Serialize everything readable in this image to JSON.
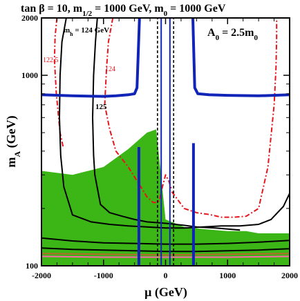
{
  "chart_data": {
    "type": "line",
    "title": "tan β = 10, m",
    "title_sub": "1/2",
    "title_mid": " = 1000 GeV, m",
    "title_sub2": "0",
    "title_end": " = 1000 GeV",
    "xlabel": "μ (GeV)",
    "ylabel": "m",
    "ylabel_sub": "A",
    "ylabel_end": " (GeV)",
    "x_range": [
      -2000,
      2000
    ],
    "y_range": [
      100,
      2000
    ],
    "y_scale": "log",
    "x_ticks": [
      -2000,
      -1000,
      0,
      1000,
      2000
    ],
    "x_tick_labels": [
      "-2000",
      "-1000",
      "0",
      "1000",
      "2000"
    ],
    "y_ticks": [
      100,
      1000,
      2000
    ],
    "y_tick_labels": [
      "100",
      "1000",
      "2000"
    ],
    "annotations": {
      "parameter_label": "A",
      "parameter_sub": "0",
      "parameter_value": " = 2.5m",
      "parameter_sub2": "0",
      "higgs_label_prefix": "m",
      "higgs_label_sub": "h",
      "higgs_label_value": " = 124 GeV",
      "contour_122_5": "122.5",
      "contour_124": "124",
      "contour_125": "125"
    },
    "colors": {
      "green_region": "#3cb516",
      "red_contour": "#e8141c",
      "black_contour": "#000000",
      "blue_contour": "#1024b8",
      "brown_band": "#b36a2a",
      "pink_line": "#ff66aa"
    },
    "series": [
      {
        "color_key": "green_region",
        "style": "filled",
        "x": [
          -2000,
          -1500,
          -1000,
          -600,
          -300,
          -150,
          0,
          300,
          600,
          1000,
          1300,
          1500,
          1800,
          2000,
          2000,
          -2000
        ],
        "y": [
          315,
          300,
          330,
          410,
          500,
          520,
          175,
          160,
          156,
          152,
          152,
          148,
          148,
          148,
          100,
          100
        ]
      },
      {
        "color_key": "red_contour",
        "style": "dash-dot",
        "label_key": "contour_122_5",
        "x": [
          -1750,
          -1780,
          -1790,
          -1760,
          -1700,
          -1650
        ],
        "y": [
          2000,
          1600,
          1200,
          800,
          500,
          420
        ]
      },
      {
        "color_key": "red_contour",
        "style": "dash-dot",
        "label_key": "contour_124",
        "x": [
          -850,
          -920,
          -950,
          -980,
          -900,
          -800,
          -600,
          -400,
          -300,
          -200,
          -150,
          -100,
          -50,
          0,
          50,
          100
        ],
        "y": [
          2000,
          1500,
          1100,
          700,
          520,
          400,
          330,
          260,
          230,
          215,
          215,
          220,
          260,
          300,
          280,
          250
        ]
      },
      {
        "color_key": "red_contour",
        "style": "dash-dot",
        "x": [
          100,
          300,
          500,
          700,
          900,
          1100,
          1300,
          1500,
          1650,
          1750,
          1780,
          1790,
          1790
        ],
        "y": [
          245,
          200,
          190,
          186,
          180,
          180,
          182,
          200,
          330,
          700,
          1100,
          1600,
          2000
        ]
      },
      {
        "color_key": "black_contour",
        "style": "solid",
        "label_key": "contour_125",
        "x": [
          -1100,
          -1130,
          -1160,
          -1175,
          -1160,
          -1140,
          -1050,
          -900,
          -700,
          -500,
          -300,
          -100,
          100,
          300,
          500,
          800,
          1000,
          1200
        ],
        "y": [
          2000,
          1500,
          1000,
          600,
          380,
          300,
          210,
          190,
          182,
          175,
          170,
          168,
          166,
          163,
          160,
          158,
          156,
          154
        ]
      },
      {
        "color_key": "black_contour",
        "style": "solid",
        "x": [
          -1600,
          -1670,
          -1700,
          -1710,
          -1690,
          -1640,
          -1500,
          -1200,
          -900,
          -600,
          -300,
          0,
          300,
          600,
          900,
          1200,
          1500,
          1700,
          1900,
          2000
        ],
        "y": [
          2000,
          1500,
          1000,
          600,
          380,
          260,
          185,
          170,
          165,
          162,
          160,
          158,
          158,
          160,
          162,
          162,
          165,
          175,
          205,
          240
        ]
      },
      {
        "color_key": "black_contour",
        "style": "solid",
        "x": [
          -2000,
          -1500,
          -1000,
          -500,
          0,
          500,
          1000,
          1500,
          2000
        ],
        "y": [
          140,
          135,
          132,
          131,
          130,
          130,
          131,
          133,
          136
        ]
      },
      {
        "color_key": "black_contour",
        "style": "solid",
        "x": [
          -2000,
          -1500,
          -1000,
          -500,
          0,
          500,
          1000,
          1500,
          2000
        ],
        "y": [
          124,
          122,
          121,
          120,
          119,
          119,
          120,
          121,
          123
        ]
      },
      {
        "color_key": "brown_band",
        "style": "solid",
        "x": [
          -2000,
          -1000,
          0,
          1000,
          2000
        ],
        "y": [
          116,
          115,
          114,
          115,
          116
        ]
      },
      {
        "color_key": "pink_line",
        "style": "solid",
        "x": [
          -2000,
          -1000,
          0,
          1000,
          2000
        ],
        "y": [
          112,
          111,
          111,
          111,
          112
        ]
      },
      {
        "color_key": "blue_contour",
        "style": "thick",
        "x": [
          -2000,
          -1500,
          -1000,
          -800,
          -600,
          -500,
          -460,
          -420
        ],
        "y": [
          790,
          780,
          775,
          780,
          790,
          800,
          860,
          2000
        ]
      },
      {
        "color_key": "blue_contour",
        "style": "thick",
        "x": [
          440,
          470,
          520,
          700,
          1000,
          1500,
          2000
        ],
        "y": [
          2000,
          860,
          800,
          790,
          785,
          780,
          790
        ]
      },
      {
        "color_key": "blue_contour",
        "style": "thick",
        "x": [
          -430,
          -430,
          -430
        ],
        "y": [
          100,
          300,
          420
        ]
      },
      {
        "color_key": "blue_contour",
        "style": "thick",
        "x": [
          450,
          450,
          450
        ],
        "y": [
          100,
          300,
          440
        ]
      },
      {
        "color_key": "blue_contour",
        "style": "solid",
        "x": [
          -70,
          -70
        ],
        "y": [
          100,
          2000
        ]
      },
      {
        "color_key": "blue_contour",
        "style": "solid",
        "x": [
          70,
          70
        ],
        "y": [
          100,
          2000
        ]
      },
      {
        "color_key": "black_contour",
        "style": "dashed",
        "x": [
          -130,
          -130
        ],
        "y": [
          100,
          2000
        ]
      },
      {
        "color_key": "black_contour",
        "style": "dashed",
        "x": [
          130,
          130
        ],
        "y": [
          100,
          2000
        ]
      }
    ]
  }
}
